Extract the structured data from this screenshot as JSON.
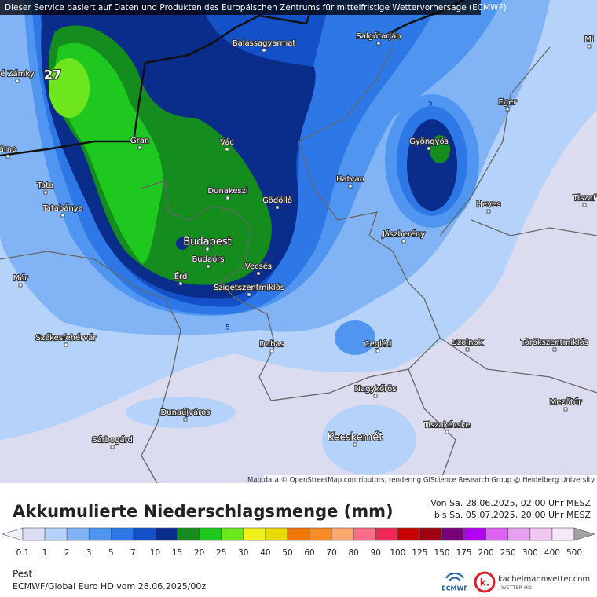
{
  "banner": "Dieser Service basiert auf Daten und Produkten des Europäischen Zentrums für mittelfristige Wettervorhersage (ECMWF)",
  "map": {
    "labels": [
      "Balassagyarmat",
      "Salgótarján",
      "Mi",
      "é Zámky",
      "27",
      "Eger",
      "5",
      "Gran",
      "Vác",
      "Gyöngyös",
      "árno",
      "Tata",
      "Dunakeszi",
      "Gödöllő",
      "Hatvan",
      "Heves",
      "Tiszaf",
      "Tatabánya",
      "Jászberény",
      "Budapest",
      "Budaörs",
      "Vecsés",
      "Mór",
      "Érd",
      "Szigetszentmiklós",
      "5",
      "Székesfehérvár",
      "Dabas",
      "Cegléd",
      "Szolnok",
      "Törökszentmiklós",
      "Nagykőrös",
      "Mezőtúr",
      "Dunaújváros",
      "Tiszakécske",
      "Sárbogárd",
      "Kecskemét"
    ],
    "attribution": "Map data © OpenStreetMap contributors, rendering GIScience Research Group @ Heidelberg University"
  },
  "legend": {
    "title": "Akkumulierte Niederschlagsmenge (mm)",
    "period": [
      "Von Sa. 28.06.2025, 02:00 Uhr MESZ",
      "bis Sa. 05.07.2025, 20:00 Uhr MESZ"
    ],
    "levels": [
      0.1,
      1,
      2,
      3,
      5,
      7,
      10,
      15,
      20,
      25,
      30,
      40,
      50,
      60,
      70,
      80,
      90,
      100,
      125,
      150,
      175,
      200,
      250,
      300,
      400,
      500
    ],
    "colors": [
      "#dcdcf4",
      "#b4d2fa",
      "#82b4f5",
      "#5096f0",
      "#2d78e6",
      "#1450c8",
      "#0a2d8c",
      "#148c1e",
      "#1ec81e",
      "#6ee61e",
      "#f0f01e",
      "#e6dc00",
      "#f07800",
      "#fa8c28",
      "#faaa6e",
      "#fa6e8c",
      "#f0285a",
      "#c80000",
      "#a00014",
      "#780078",
      "#b400f0",
      "#dc64f0",
      "#e6a0f0",
      "#f0c8f0",
      "#f5e6fa"
    ],
    "below_color": "#f0f0f8",
    "above_color": "#a0a0a0"
  },
  "footer": {
    "region": "Pest",
    "model": "ECMWF/Global Euro HD vom  28.06.2025/00z",
    "ecmwf_logo": "ECMWF",
    "site": "kachelmannwetter.com",
    "site_sub": "WETTER HD",
    "site_mark": "k."
  }
}
